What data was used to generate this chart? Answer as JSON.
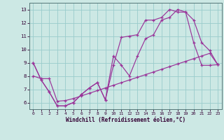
{
  "xlabel": "Windchill (Refroidissement éolien,°C)",
  "background_color": "#cce8e4",
  "line_color": "#993399",
  "grid_color": "#99cccc",
  "series1_x": [
    0,
    1,
    2,
    3,
    4,
    5,
    6,
    7,
    8,
    9,
    10,
    11,
    12,
    13,
    14,
    15,
    16,
    17,
    18,
    19,
    20,
    21,
    22,
    23
  ],
  "series1_y": [
    9.0,
    7.7,
    6.8,
    5.75,
    5.75,
    6.0,
    6.6,
    7.1,
    7.5,
    6.2,
    9.5,
    8.8,
    8.0,
    9.5,
    10.8,
    11.1,
    12.2,
    12.4,
    13.0,
    12.8,
    12.2,
    10.5,
    9.9,
    8.85
  ],
  "series2_x": [
    0,
    1,
    2,
    3,
    4,
    5,
    6,
    7,
    8,
    9,
    10,
    11,
    12,
    13,
    14,
    15,
    16,
    17,
    18,
    19,
    20,
    21,
    22,
    23
  ],
  "series2_y": [
    9.0,
    7.7,
    6.8,
    5.75,
    5.75,
    6.0,
    6.6,
    7.1,
    7.5,
    6.2,
    8.8,
    10.9,
    11.0,
    11.1,
    12.2,
    12.2,
    12.4,
    13.0,
    12.8,
    12.8,
    10.5,
    8.8,
    8.8,
    8.85
  ],
  "series3_x": [
    0,
    1,
    2,
    3,
    4,
    5,
    6,
    7,
    8,
    9,
    10,
    11,
    12,
    13,
    14,
    15,
    16,
    17,
    18,
    19,
    20,
    21,
    22,
    23
  ],
  "series3_y": [
    8.0,
    7.8,
    7.8,
    6.1,
    6.15,
    6.3,
    6.5,
    6.7,
    6.9,
    7.1,
    7.3,
    7.5,
    7.7,
    7.9,
    8.1,
    8.3,
    8.5,
    8.7,
    8.9,
    9.1,
    9.3,
    9.5,
    9.7,
    8.85
  ],
  "ylim": [
    5.5,
    13.5
  ],
  "yticks": [
    6,
    7,
    8,
    9,
    10,
    11,
    12,
    13
  ],
  "xlim": [
    -0.5,
    23.5
  ],
  "xticks": [
    0,
    1,
    2,
    3,
    4,
    5,
    6,
    7,
    8,
    9,
    10,
    11,
    12,
    13,
    14,
    15,
    16,
    17,
    18,
    19,
    20,
    21,
    22,
    23
  ]
}
